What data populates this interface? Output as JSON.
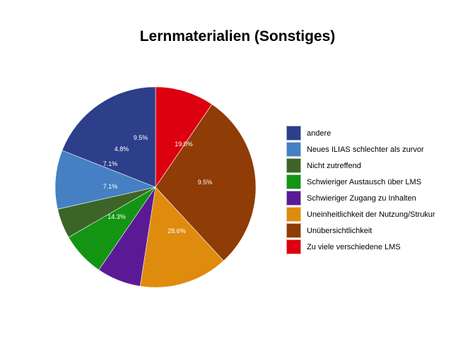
{
  "chart_data": {
    "type": "pie",
    "title": "Lernmaterialien (Sonstiges)",
    "legend_position": "right",
    "slices": [
      {
        "name": "Zu viele verschiedene LMS",
        "percent": 9.5,
        "color": "#dc0010"
      },
      {
        "name": "Unübersichtlichkeit",
        "percent": 28.6,
        "color": "#8f3c06"
      },
      {
        "name": "Uneinheitlichkeit der Nutzung/Strukur",
        "percent": 14.3,
        "color": "#df8b0d"
      },
      {
        "name": "Schwieriger Zugang zu Inhalten",
        "percent": 7.1,
        "color": "#5b1a95"
      },
      {
        "name": "Schwieriger Austausch über LMS",
        "percent": 7.1,
        "color": "#139513"
      },
      {
        "name": "Nicht zutreffend",
        "percent": 4.8,
        "color": "#3d6427"
      },
      {
        "name": "Neues ILIAS schlechter als zurvor",
        "percent": 9.5,
        "color": "#4480c3"
      },
      {
        "name": "andere",
        "percent": 19.0,
        "color": "#2d3e8a"
      }
    ],
    "slice_labels": [
      {
        "text": "9.5%"
      },
      {
        "text": "4.8%"
      },
      {
        "text": "7.1%"
      },
      {
        "text": "7.1%"
      },
      {
        "text": "14.3%"
      },
      {
        "text": "28.6%"
      },
      {
        "text": "9.5%"
      },
      {
        "text": "19.0%"
      }
    ],
    "legend": [
      {
        "label": "andere",
        "color": "#2d3e8a"
      },
      {
        "label": "Neues ILIAS schlechter als zurvor",
        "color": "#4480c3"
      },
      {
        "label": "Nicht zutreffend",
        "color": "#3d6427"
      },
      {
        "label": "Schwieriger Austausch über LMS",
        "color": "#139513"
      },
      {
        "label": "Schwieriger Zugang zu Inhalten",
        "color": "#5b1a95"
      },
      {
        "label": "Uneinheitlichkeit der Nutzung/Strukur",
        "color": "#df8b0d"
      },
      {
        "label": "Unübersichtlichkeit",
        "color": "#8f3c06"
      },
      {
        "label": "Zu viele verschiedene LMS",
        "color": "#dc0010"
      }
    ]
  }
}
